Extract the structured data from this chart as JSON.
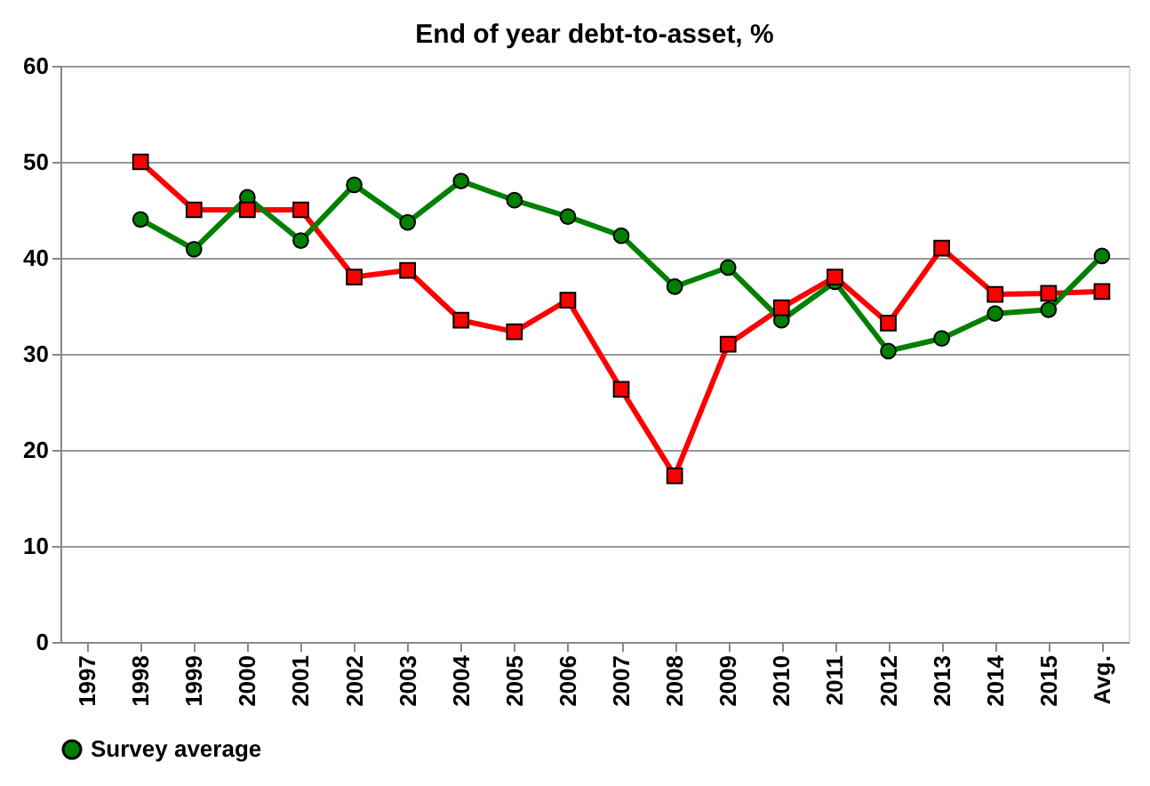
{
  "chart_data": {
    "type": "line",
    "title": "End of year debt-to-asset, %",
    "categories": [
      "1997",
      "1998",
      "1999",
      "2000",
      "2001",
      "2002",
      "2003",
      "2004",
      "2005",
      "2006",
      "2007",
      "2008",
      "2009",
      "2010",
      "2011",
      "2012",
      "2013",
      "2014",
      "2015",
      "Avg."
    ],
    "series": [
      {
        "color": "#ff0000",
        "marker": "square",
        "values": [
          null,
          50,
          45,
          45,
          45,
          38,
          38.7,
          33.5,
          32.3,
          35.6,
          26.3,
          17.3,
          31,
          34.8,
          38,
          33.2,
          41,
          36.2,
          36.3,
          36.5
        ]
      },
      {
        "name": "Survey average",
        "color": "#008000",
        "marker": "circle",
        "values": [
          null,
          44,
          40.9,
          46.3,
          41.8,
          47.6,
          43.7,
          48,
          46,
          44.3,
          42.3,
          37,
          39,
          33.5,
          37.5,
          30.3,
          31.6,
          34.2,
          34.6,
          40.2
        ]
      }
    ],
    "ylim": [
      0,
      60
    ],
    "yticks": [
      0,
      10,
      20,
      30,
      40,
      50,
      60
    ],
    "grid": "y",
    "legend": "bottom",
    "line_style": "solid"
  }
}
